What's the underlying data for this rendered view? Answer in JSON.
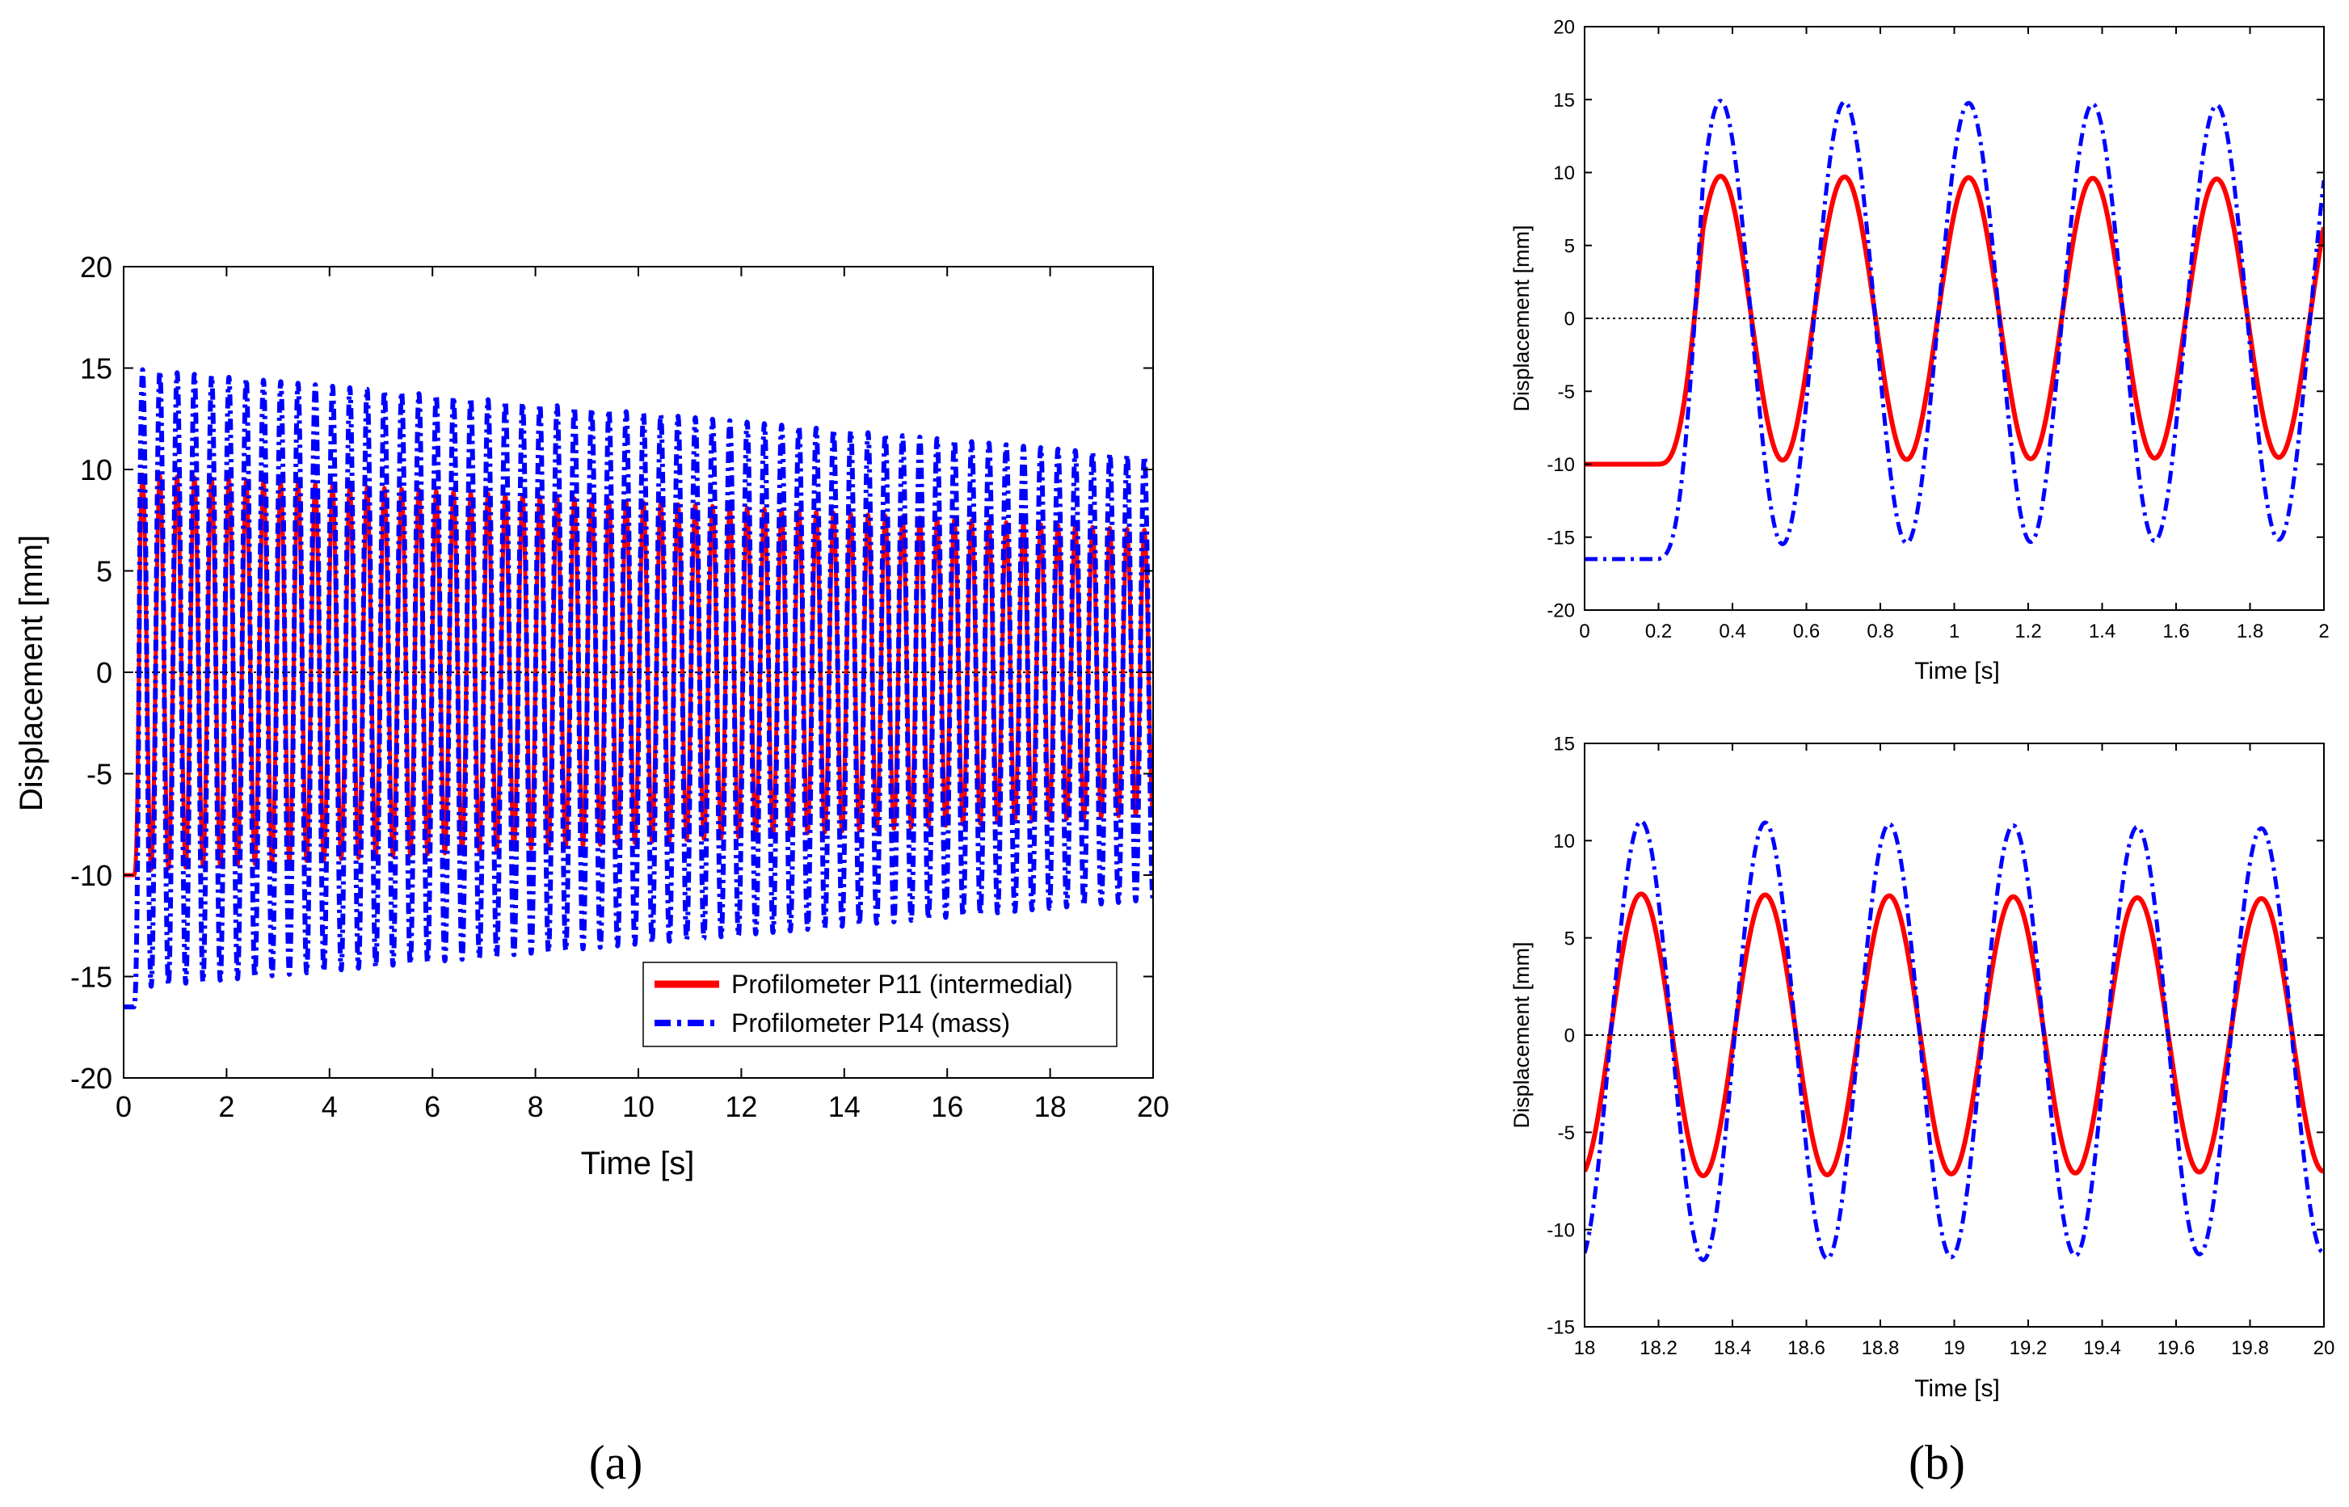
{
  "colors": {
    "p11": "#ff0000",
    "p14": "#0000ff",
    "axis": "#000000",
    "zero": "#000000"
  },
  "chart_data": [
    {
      "id": "a",
      "type": "line",
      "panel_label": "(a)",
      "xlabel": "Time [s]",
      "ylabel": "Displacement [mm]",
      "xlim": [
        0,
        20
      ],
      "ylim": [
        -20,
        20
      ],
      "xticks": [
        0,
        2,
        4,
        6,
        8,
        10,
        12,
        14,
        16,
        18,
        20
      ],
      "yticks": [
        -20,
        -15,
        -10,
        -5,
        0,
        5,
        10,
        15,
        20
      ],
      "grid": false,
      "legend": {
        "placement": "bottom-right",
        "entries": [
          "Profilometer P11 (intermedial)",
          "Profilometer P14 (mass)"
        ]
      },
      "zero_line": true,
      "series": [
        {
          "name": "Profilometer P11 (intermedial)",
          "style": "solid",
          "initial_value": -10,
          "start_time": 0.2,
          "frequency": 2.98,
          "amplitude_start": 9.8,
          "amplitude_end": 7.0,
          "mean": 0.0
        },
        {
          "name": "Profilometer P14 (mass)",
          "style": "dashdot",
          "initial_value": -16.5,
          "start_time": 0.2,
          "frequency": 2.98,
          "amplitude_start": 15.3,
          "amplitude_end": 10.9,
          "mean": -0.3
        }
      ]
    },
    {
      "id": "b-top",
      "type": "line",
      "xlabel": "Time [s]",
      "ylabel": "Displacement [mm]",
      "xlim": [
        0,
        2
      ],
      "ylim": [
        -20,
        20
      ],
      "xticks": [
        0,
        0.2,
        0.4,
        0.6,
        0.8,
        1,
        1.2,
        1.4,
        1.6,
        1.8,
        2
      ],
      "yticks": [
        -20,
        -15,
        -10,
        -5,
        0,
        5,
        10,
        15,
        20
      ],
      "grid": false,
      "zero_line": true,
      "series": [
        {
          "name": "",
          "style": "solid",
          "initial_value": -10,
          "start_time": 0.2,
          "frequency": 2.98,
          "amplitude_start": 9.8,
          "amplitude_end": 7.0,
          "mean": 0.0
        },
        {
          "name": "",
          "style": "dashdot",
          "initial_value": -16.5,
          "start_time": 0.2,
          "frequency": 2.98,
          "amplitude_start": 15.3,
          "amplitude_end": 10.9,
          "mean": -0.3
        }
      ]
    },
    {
      "id": "b-bottom",
      "type": "line",
      "panel_label": "(b)",
      "xlabel": "Time [s]",
      "ylabel": "Displacement [mm]",
      "xlim": [
        18,
        20
      ],
      "ylim": [
        -15,
        15
      ],
      "xticks": [
        18,
        18.2,
        18.4,
        18.6,
        18.8,
        19,
        19.2,
        19.4,
        19.6,
        19.8,
        20
      ],
      "yticks": [
        -15,
        -10,
        -5,
        0,
        5,
        10,
        15
      ],
      "grid": false,
      "zero_line": true,
      "series": [
        {
          "name": "",
          "style": "solid",
          "initial_value": -10,
          "start_time": 0.2,
          "frequency": 2.98,
          "amplitude_start": 9.8,
          "amplitude_end": 7.0,
          "mean": 0.0
        },
        {
          "name": "",
          "style": "dashdot",
          "initial_value": -16.5,
          "start_time": 0.2,
          "frequency": 2.98,
          "amplitude_start": 15.3,
          "amplitude_end": 10.9,
          "mean": -0.3
        }
      ]
    }
  ]
}
